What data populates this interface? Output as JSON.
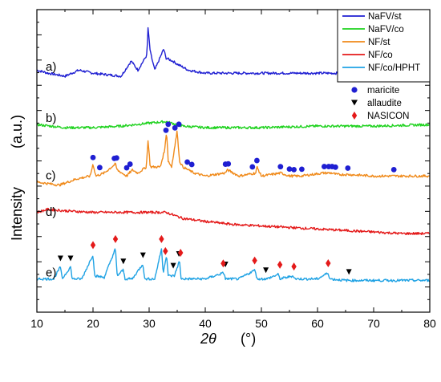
{
  "chart_data": {
    "type": "line",
    "xlabel_symbol": "2θ",
    "xlabel_unit": "(°)",
    "ylabel": "Intensity",
    "ylabel_unit": "(a.u.)",
    "xlim": [
      10,
      80
    ],
    "x_ticks": [
      10,
      20,
      30,
      40,
      50,
      60,
      70,
      80
    ],
    "grid": false,
    "legend_position": "top-right",
    "panel_labels": [
      "a)",
      "b)",
      "c)",
      "d)",
      "e)"
    ],
    "series": [
      {
        "name": "NaFV/st",
        "color": "#1f1fd2",
        "baseline": 0.78,
        "points": [
          [
            10,
            0.8
          ],
          [
            12,
            0.79
          ],
          [
            15,
            0.78
          ],
          [
            17.5,
            0.8
          ],
          [
            20,
            0.79
          ],
          [
            25,
            0.78
          ],
          [
            26.8,
            0.83
          ],
          [
            28,
            0.8
          ],
          [
            29.6,
            0.85
          ],
          [
            29.8,
            0.94
          ],
          [
            30.2,
            0.86
          ],
          [
            31,
            0.8
          ],
          [
            32.6,
            0.87
          ],
          [
            33,
            0.84
          ],
          [
            34.2,
            0.83
          ],
          [
            35,
            0.82
          ],
          [
            37,
            0.8
          ],
          [
            40,
            0.79
          ],
          [
            45,
            0.79
          ],
          [
            50,
            0.79
          ],
          [
            55,
            0.79
          ],
          [
            60,
            0.79
          ],
          [
            65,
            0.79
          ],
          [
            70,
            0.79
          ],
          [
            75,
            0.79
          ],
          [
            80,
            0.79
          ]
        ]
      },
      {
        "name": "NaFV/co",
        "color": "#1fd21f",
        "baseline": 0.61,
        "points": [
          [
            10,
            0.62
          ],
          [
            15,
            0.61
          ],
          [
            20,
            0.61
          ],
          [
            25,
            0.615
          ],
          [
            30,
            0.625
          ],
          [
            33,
            0.63
          ],
          [
            36,
            0.615
          ],
          [
            40,
            0.61
          ],
          [
            50,
            0.61
          ],
          [
            60,
            0.615
          ],
          [
            70,
            0.615
          ],
          [
            80,
            0.62
          ]
        ]
      },
      {
        "name": "NF/st",
        "color": "#f08a1a",
        "baseline": 0.42,
        "points": [
          [
            10,
            0.43
          ],
          [
            14,
            0.42
          ],
          [
            17,
            0.44
          ],
          [
            19.5,
            0.45
          ],
          [
            20,
            0.49
          ],
          [
            20.5,
            0.45
          ],
          [
            22,
            0.46
          ],
          [
            24,
            0.49
          ],
          [
            24.3,
            0.47
          ],
          [
            26,
            0.45
          ],
          [
            27,
            0.47
          ],
          [
            28,
            0.46
          ],
          [
            29.5,
            0.48
          ],
          [
            29.8,
            0.57
          ],
          [
            30.2,
            0.48
          ],
          [
            32,
            0.48
          ],
          [
            32.8,
            0.54
          ],
          [
            33.1,
            0.6
          ],
          [
            33.4,
            0.5
          ],
          [
            34,
            0.48
          ],
          [
            35,
            0.6
          ],
          [
            35.4,
            0.5
          ],
          [
            36,
            0.48
          ],
          [
            37,
            0.47
          ],
          [
            38,
            0.46
          ],
          [
            40,
            0.45
          ],
          [
            43.5,
            0.46
          ],
          [
            44,
            0.47
          ],
          [
            46,
            0.45
          ],
          [
            49,
            0.46
          ],
          [
            49.2,
            0.48
          ],
          [
            50,
            0.45
          ],
          [
            53.5,
            0.46
          ],
          [
            55,
            0.45
          ],
          [
            57,
            0.45
          ],
          [
            61,
            0.46
          ],
          [
            62.5,
            0.46
          ],
          [
            63.5,
            0.455
          ],
          [
            65.5,
            0.455
          ],
          [
            70,
            0.45
          ],
          [
            73.5,
            0.45
          ],
          [
            75,
            0.45
          ],
          [
            80,
            0.45
          ]
        ]
      },
      {
        "name": "NF/co",
        "color": "#e41a1a",
        "baseline": 0.3,
        "points": [
          [
            10,
            0.33
          ],
          [
            12,
            0.34
          ],
          [
            15,
            0.335
          ],
          [
            20,
            0.33
          ],
          [
            25,
            0.33
          ],
          [
            30,
            0.33
          ],
          [
            33,
            0.33
          ],
          [
            36,
            0.31
          ],
          [
            40,
            0.3
          ],
          [
            45,
            0.29
          ],
          [
            50,
            0.285
          ],
          [
            55,
            0.28
          ],
          [
            60,
            0.275
          ],
          [
            65,
            0.27
          ],
          [
            70,
            0.265
          ],
          [
            75,
            0.26
          ],
          [
            80,
            0.26
          ]
        ]
      },
      {
        "name": "NF/co/HPHT",
        "color": "#1fa2e4",
        "baseline": 0.1,
        "points": [
          [
            10,
            0.11
          ],
          [
            13,
            0.11
          ],
          [
            14.2,
            0.15
          ],
          [
            14.5,
            0.11
          ],
          [
            16,
            0.15
          ],
          [
            16.3,
            0.11
          ],
          [
            18,
            0.11
          ],
          [
            20,
            0.19
          ],
          [
            20.3,
            0.12
          ],
          [
            22,
            0.115
          ],
          [
            24,
            0.21
          ],
          [
            24.3,
            0.12
          ],
          [
            25.4,
            0.14
          ],
          [
            25.7,
            0.11
          ],
          [
            27,
            0.11
          ],
          [
            28.9,
            0.16
          ],
          [
            29.2,
            0.11
          ],
          [
            31,
            0.11
          ],
          [
            32.2,
            0.21
          ],
          [
            32.5,
            0.13
          ],
          [
            33.1,
            0.19
          ],
          [
            33.4,
            0.12
          ],
          [
            34.5,
            0.12
          ],
          [
            35.4,
            0.17
          ],
          [
            35.7,
            0.11
          ],
          [
            37,
            0.11
          ],
          [
            40,
            0.11
          ],
          [
            43.3,
            0.13
          ],
          [
            43.6,
            0.11
          ],
          [
            46,
            0.11
          ],
          [
            48.9,
            0.14
          ],
          [
            49.2,
            0.11
          ],
          [
            51,
            0.11
          ],
          [
            53,
            0.125
          ],
          [
            53.3,
            0.11
          ],
          [
            55.7,
            0.12
          ],
          [
            56,
            0.11
          ],
          [
            60,
            0.11
          ],
          [
            61.9,
            0.13
          ],
          [
            62.2,
            0.11
          ],
          [
            65,
            0.105
          ],
          [
            70,
            0.105
          ],
          [
            75,
            0.105
          ],
          [
            80,
            0.105
          ]
        ]
      }
    ],
    "marker_legend": [
      {
        "name": "maricite",
        "marker": "circle",
        "color": "#1f1fd2"
      },
      {
        "name": "allaudite",
        "marker": "triangle",
        "color": "#000000"
      },
      {
        "name": "NASICON",
        "marker": "diamond",
        "color": "#e41a1a"
      }
    ],
    "maricite_peaks_on_c": [
      20.0,
      21.2,
      23.8,
      24.2,
      26.0,
      26.6,
      33.0,
      33.4,
      34.6,
      35.3,
      36.8,
      37.6,
      43.6,
      44.1,
      48.4,
      49.2,
      53.4,
      55.0,
      55.8,
      57.2,
      61.2,
      62.0,
      62.6,
      63.2,
      65.4,
      73.6
    ],
    "allaudite_peaks_on_e": [
      14.2,
      16.0,
      25.4,
      28.9,
      34.3,
      35.3,
      43.6,
      50.8,
      65.6
    ],
    "nasicon_peaks_on_e": [
      20.0,
      24.0,
      32.2,
      32.9,
      35.6,
      43.2,
      48.8,
      53.3,
      55.8,
      61.9
    ]
  }
}
